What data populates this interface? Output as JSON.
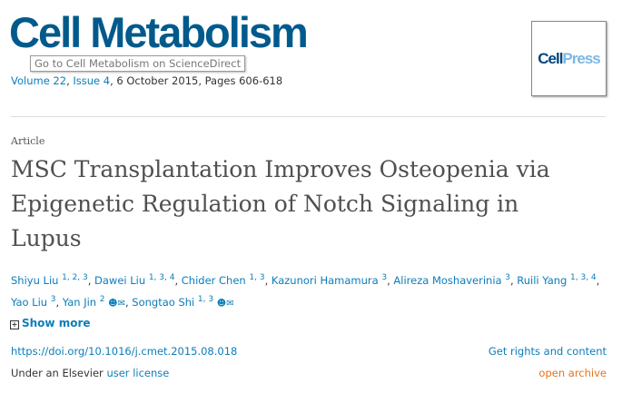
{
  "journal": {
    "name": "Cell Metabolism",
    "tooltip": "Go to Cell Metabolism on ScienceDirect",
    "volume": "Volume 22",
    "issue": "Issue 4",
    "date_pages": ", 6 October 2015, Pages 606-618",
    "logo_cell": "Cell",
    "logo_press": "Press"
  },
  "article": {
    "type": "Article",
    "title": "MSC Transplantation Improves Osteopenia via Epigenetic Regulation of Notch Signaling in Lupus"
  },
  "authors": [
    {
      "name": "Shiyu Liu",
      "aff": "1, 2, 3"
    },
    {
      "name": "Dawei Liu",
      "aff": "1, 3, 4"
    },
    {
      "name": "Chider Chen",
      "aff": "1, 3"
    },
    {
      "name": "Kazunori Hamamura",
      "aff": "3"
    },
    {
      "name": "Alireza Moshaverinia",
      "aff": "3"
    },
    {
      "name": "Ruili Yang",
      "aff": "1, 3, 4"
    },
    {
      "name": "Yao Liu",
      "aff": "3"
    },
    {
      "name": "Yan Jin",
      "aff": "2"
    },
    {
      "name": "Songtao Shi",
      "aff": "1, 3"
    }
  ],
  "show_more": "Show more",
  "doi": "https://doi.org/10.1016/j.cmet.2015.08.018",
  "rights": "Get rights and content",
  "license_prefix": "Under an Elsevier ",
  "license_link": "user license",
  "open_archive": "open archive",
  "colors": {
    "brand": "#005a8c",
    "link": "#0c7dbb",
    "open_archive": "#e9711c"
  }
}
